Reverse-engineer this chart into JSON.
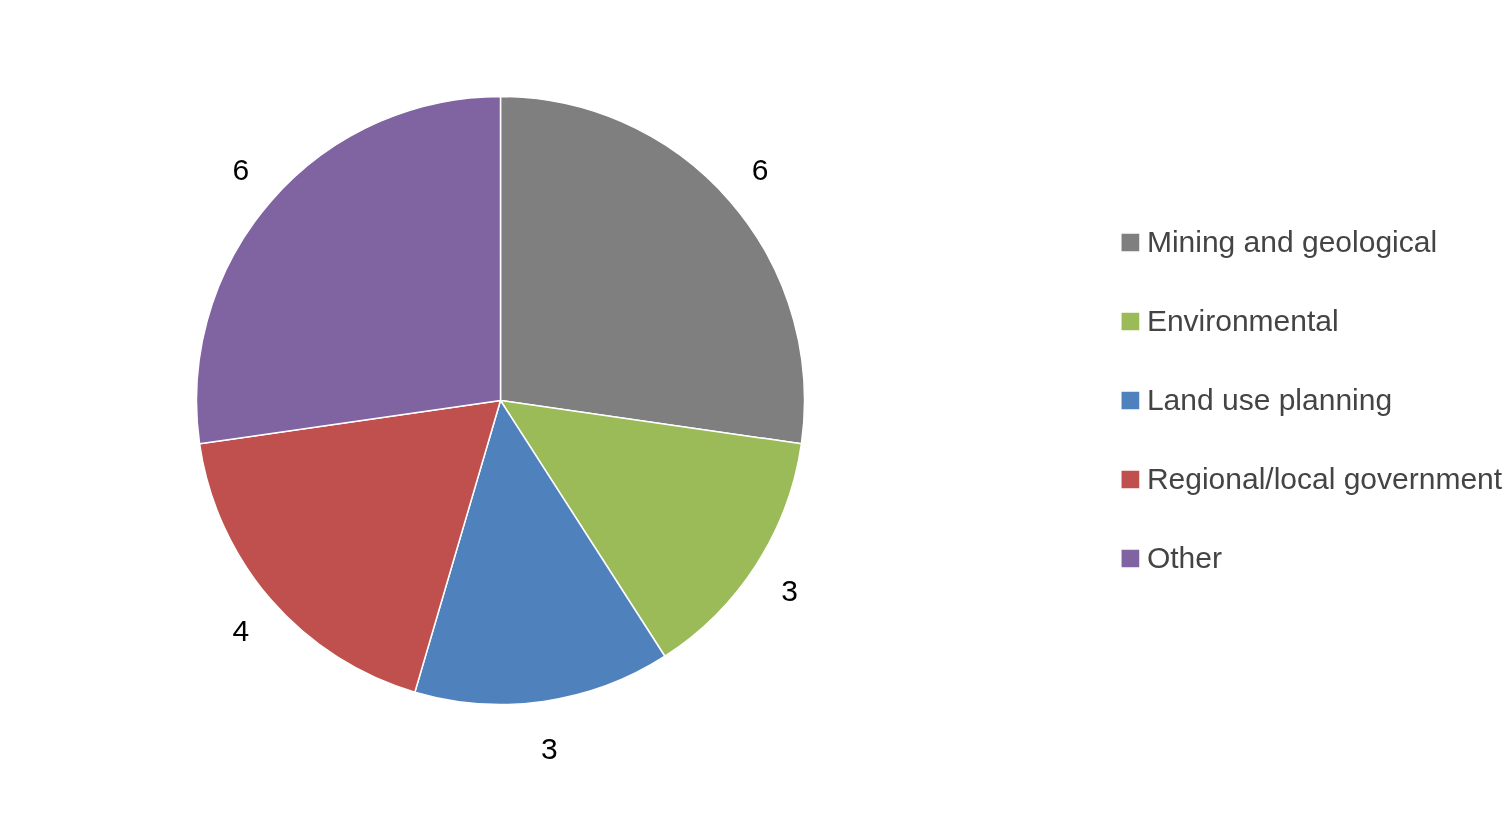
{
  "chart_data": {
    "type": "pie",
    "categories": [
      "Mining and geological",
      "Environmental",
      "Land use planning",
      "Regional/local government",
      "Other"
    ],
    "values": [
      6,
      3,
      3,
      4,
      6
    ],
    "colors": [
      "#7f7f7f",
      "#9bbb59",
      "#4f81bd",
      "#c0504d",
      "#8064a2"
    ],
    "data_labels": true,
    "legend": "right"
  }
}
